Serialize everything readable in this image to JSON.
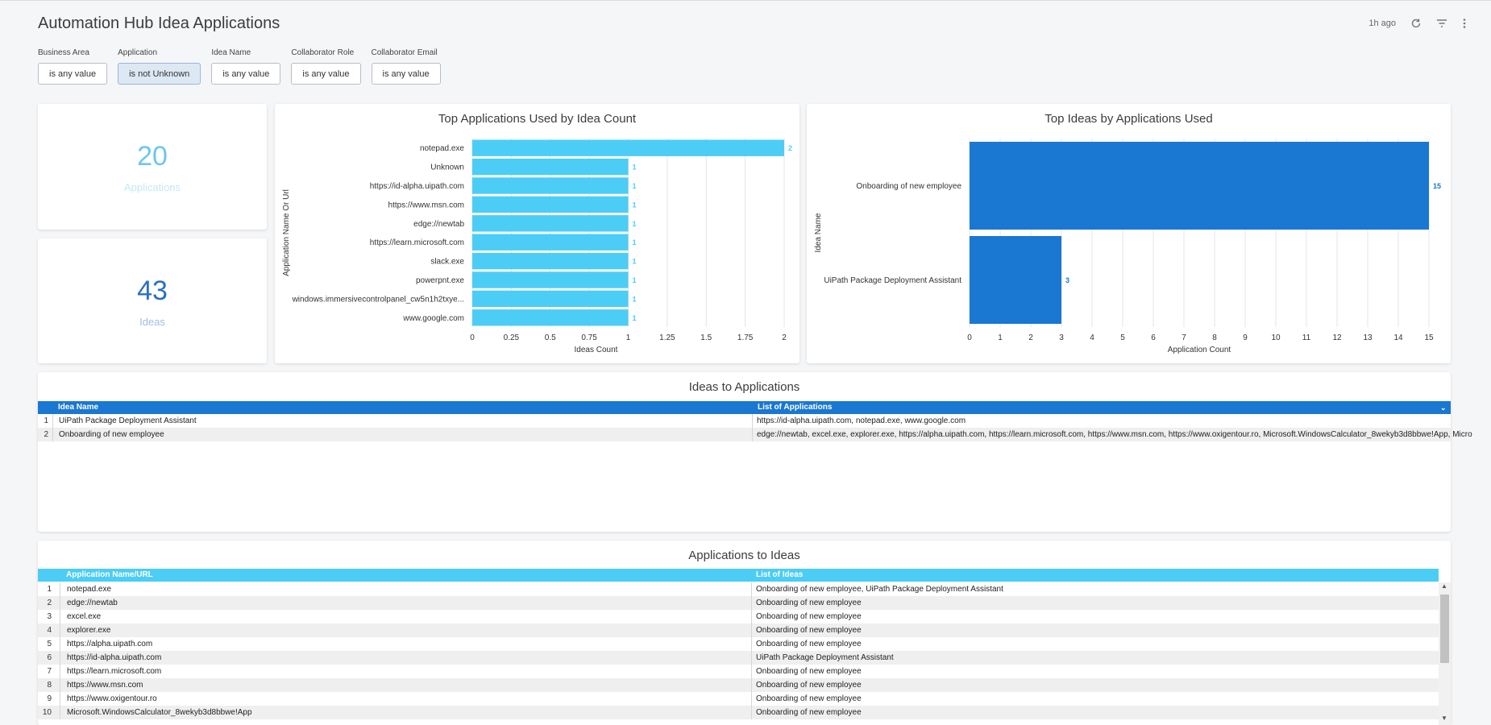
{
  "header": {
    "title": "Automation Hub Idea Applications",
    "updated": "1h ago",
    "icons": [
      "refresh-icon",
      "filter-icon",
      "more-vert-icon"
    ]
  },
  "filters": [
    {
      "label": "Business Area",
      "value": "is any value",
      "active": false
    },
    {
      "label": "Application",
      "value": "is not Unknown",
      "active": true
    },
    {
      "label": "Idea Name",
      "value": "is any value",
      "active": false
    },
    {
      "label": "Collaborator Role",
      "value": "is any value",
      "active": false
    },
    {
      "label": "Collaborator Email",
      "value": "is any value",
      "active": false
    }
  ],
  "kpis": {
    "applications": {
      "value": "20",
      "label": "Applications"
    },
    "ideas": {
      "value": "43",
      "label": "Ideas"
    }
  },
  "colors": {
    "light_blue": "#4ccdf5",
    "dark_blue": "#1a77d2",
    "kpi_light": "#6cc8ea",
    "kpi_dark": "#2a6fc2"
  },
  "chart_data": [
    {
      "type": "bar",
      "orientation": "horizontal",
      "title": "Top Applications Used by Idea Count",
      "xlabel": "Ideas Count",
      "ylabel": "Application Name Or Url",
      "categories": [
        "notepad.exe",
        "Unknown",
        "https://id-alpha.uipath.com",
        "https://www.msn.com",
        "edge://newtab",
        "https://learn.microsoft.com",
        "slack.exe",
        "powerpnt.exe",
        "windows.immersivecontrolpanel_cw5n1h2txye...",
        "www.google.com"
      ],
      "values": [
        2,
        1,
        1,
        1,
        1,
        1,
        1,
        1,
        1,
        1
      ],
      "xlim": [
        0,
        2
      ],
      "ticks": [
        "0",
        "0.25",
        "0.5",
        "0.75",
        "1",
        "1.25",
        "1.5",
        "1.75",
        "2"
      ],
      "grid": true,
      "color": "#4ccdf5"
    },
    {
      "type": "bar",
      "orientation": "horizontal",
      "title": "Top Ideas by Applications Used",
      "xlabel": "Application Count",
      "ylabel": "Idea Name",
      "categories": [
        "Onboarding of new employee",
        "UiPath Package Deployment Assistant"
      ],
      "values": [
        15,
        3
      ],
      "xlim": [
        0,
        15
      ],
      "ticks": [
        "0",
        "1",
        "2",
        "3",
        "4",
        "5",
        "6",
        "7",
        "8",
        "9",
        "10",
        "11",
        "12",
        "13",
        "14",
        "15"
      ],
      "grid": true,
      "color": "#1a77d2"
    }
  ],
  "ideas_table": {
    "title": "Ideas to Applications",
    "columns": [
      "Idea Name",
      "List of Applications"
    ],
    "rows": [
      {
        "idx": "1",
        "name": "UiPath Package Deployment Assistant",
        "list": "https://id-alpha.uipath.com, notepad.exe, www.google.com"
      },
      {
        "idx": "2",
        "name": "Onboarding of new employee",
        "list": "edge://newtab, excel.exe, explorer.exe, https://alpha.uipath.com, https://learn.microsoft.com, https://www.msn.com, https://www.oxigentour.ro, Microsoft.WindowsCalculator_8wekyb3d8bbwe!App, Micro"
      }
    ]
  },
  "apps_table": {
    "title": "Applications to Ideas",
    "columns": [
      "Application Name/URL",
      "List of Ideas"
    ],
    "rows": [
      {
        "idx": "1",
        "name": "notepad.exe",
        "list": "Onboarding of new employee, UiPath Package Deployment Assistant"
      },
      {
        "idx": "2",
        "name": "edge://newtab",
        "list": "Onboarding of new employee"
      },
      {
        "idx": "3",
        "name": "excel.exe",
        "list": "Onboarding of new employee"
      },
      {
        "idx": "4",
        "name": "explorer.exe",
        "list": "Onboarding of new employee"
      },
      {
        "idx": "5",
        "name": "https://alpha.uipath.com",
        "list": "Onboarding of new employee"
      },
      {
        "idx": "6",
        "name": "https://id-alpha.uipath.com",
        "list": "UiPath Package Deployment Assistant"
      },
      {
        "idx": "7",
        "name": "https://learn.microsoft.com",
        "list": "Onboarding of new employee"
      },
      {
        "idx": "8",
        "name": "https://www.msn.com",
        "list": "Onboarding of new employee"
      },
      {
        "idx": "9",
        "name": "https://www.oxigentour.ro",
        "list": "Onboarding of new employee"
      },
      {
        "idx": "10",
        "name": "Microsoft.WindowsCalculator_8wekyb3d8bbwe!App",
        "list": "Onboarding of new employee"
      }
    ]
  }
}
